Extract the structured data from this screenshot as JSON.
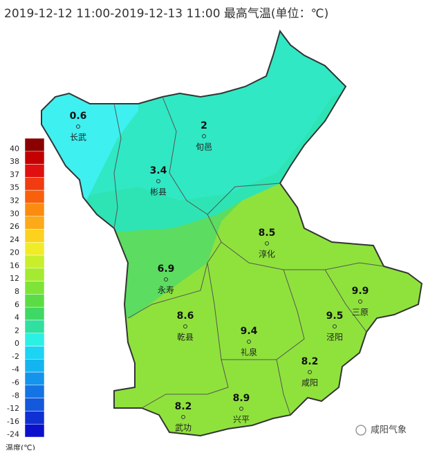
{
  "title": "2019-12-12 11:00-2019-12-13 11:00 最高气温(单位：℃)",
  "legend": {
    "label": "温度(℃)",
    "ticks": [
      40,
      38,
      37,
      35,
      32,
      30,
      26,
      24,
      20,
      16,
      12,
      8,
      6,
      4,
      2,
      0,
      -2,
      -4,
      -6,
      -8,
      -12,
      -16,
      -24
    ],
    "colors": [
      "#8b0000",
      "#c40000",
      "#e01010",
      "#f03c10",
      "#f8600c",
      "#fb8c10",
      "#fcaa18",
      "#fcd21e",
      "#f0ec28",
      "#c8ee2c",
      "#a4ea30",
      "#7ee438",
      "#5cdc44",
      "#40d864",
      "#30e0a0",
      "#2cf0e4",
      "#1cd4f4",
      "#14b4f0",
      "#1494ec",
      "#1474e4",
      "#1458dc",
      "#1030d4",
      "#0a10cc"
    ]
  },
  "stations": [
    {
      "name": "长武",
      "value": 0.6
    },
    {
      "name": "旬邑",
      "value": 2
    },
    {
      "name": "彬县",
      "value": 3.4
    },
    {
      "name": "淳化",
      "value": 8.5
    },
    {
      "name": "永寿",
      "value": 6.9
    },
    {
      "name": "乾县",
      "value": 8.6
    },
    {
      "name": "礼泉",
      "value": 9.4
    },
    {
      "name": "泾阳",
      "value": 9.5
    },
    {
      "name": "三原",
      "value": 9.9
    },
    {
      "name": "咸阳",
      "value": 8.2
    },
    {
      "name": "武功",
      "value": 8.2
    },
    {
      "name": "兴平",
      "value": 8.9
    }
  ],
  "watermark": "咸阳气象"
}
